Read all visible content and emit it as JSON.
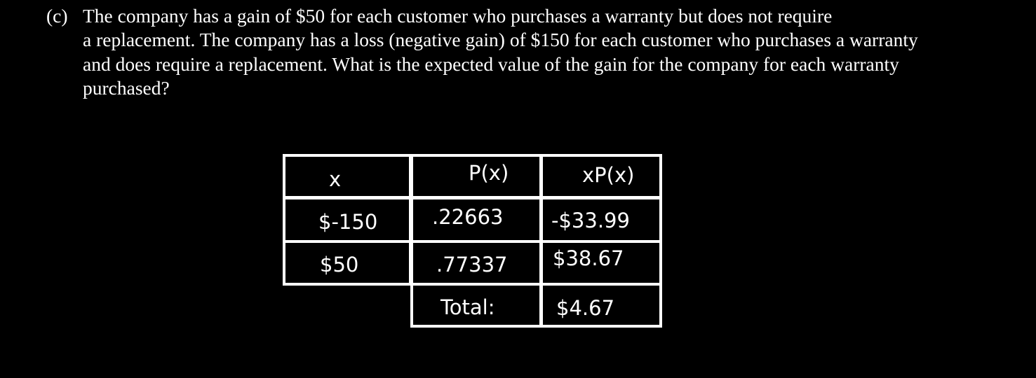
{
  "question": {
    "label": "(c)",
    "lines": [
      "The company has a gain of $50 for each customer who purchases a warranty but does not require",
      "a replacement. The company has a loss (negative gain) of $150 for each customer who purchases a warranty",
      "and does require a replacement. What is the expected value of the gain for the company for each warranty",
      "purchased?"
    ]
  },
  "table": {
    "headers": [
      "x",
      "P(x)",
      "xP(x)"
    ],
    "rows": [
      [
        "$-150",
        ".22663",
        "-$33.99"
      ],
      [
        "$50",
        ".77337",
        "$38.67"
      ]
    ],
    "total": {
      "label": "Total:",
      "value": "$4.67"
    }
  }
}
